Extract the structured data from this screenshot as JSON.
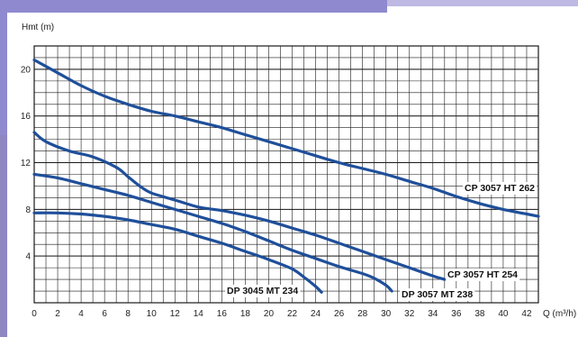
{
  "chart_data": {
    "type": "line",
    "ylabel": "Hmt (m)",
    "xlabel": "Q (m³/h)",
    "xlim": [
      0,
      43
    ],
    "ylim": [
      0,
      22
    ],
    "x_ticks": [
      0,
      2,
      4,
      6,
      8,
      10,
      12,
      14,
      16,
      18,
      20,
      22,
      24,
      26,
      28,
      30,
      32,
      34,
      36,
      38,
      40,
      42
    ],
    "y_ticks": [
      4,
      8,
      12,
      16,
      20
    ],
    "x_minor_step": 1,
    "y_minor_step": 1,
    "grid": true,
    "colors": {
      "series": "#1f4f9a",
      "grid": "#1a1a1a"
    },
    "series": [
      {
        "name": "CP 3057 HT 262",
        "points": [
          [
            0,
            20.8
          ],
          [
            2,
            19.7
          ],
          [
            4,
            18.6
          ],
          [
            6,
            17.7
          ],
          [
            8,
            17.0
          ],
          [
            10,
            16.4
          ],
          [
            12,
            16.0
          ],
          [
            14,
            15.5
          ],
          [
            16,
            15.0
          ],
          [
            18,
            14.4
          ],
          [
            20,
            13.8
          ],
          [
            22,
            13.2
          ],
          [
            24,
            12.6
          ],
          [
            26,
            12.0
          ],
          [
            28,
            11.5
          ],
          [
            30,
            11.0
          ],
          [
            32,
            10.4
          ],
          [
            34,
            9.8
          ],
          [
            36,
            9.1
          ],
          [
            38,
            8.5
          ],
          [
            40,
            8.0
          ],
          [
            42,
            7.6
          ],
          [
            43,
            7.4
          ]
        ]
      },
      {
        "name": "CP 3057 HT 254",
        "points": [
          [
            0,
            14.6
          ],
          [
            1,
            13.8
          ],
          [
            3,
            13.0
          ],
          [
            5,
            12.5
          ],
          [
            7,
            11.6
          ],
          [
            8,
            10.8
          ],
          [
            9,
            10.0
          ],
          [
            10,
            9.4
          ],
          [
            12,
            8.8
          ],
          [
            14,
            8.2
          ],
          [
            16,
            7.9
          ],
          [
            18,
            7.5
          ],
          [
            20,
            7.0
          ],
          [
            22,
            6.4
          ],
          [
            24,
            5.8
          ],
          [
            26,
            5.1
          ],
          [
            28,
            4.4
          ],
          [
            30,
            3.7
          ],
          [
            32,
            3.0
          ],
          [
            34,
            2.3
          ],
          [
            35,
            2.0
          ]
        ]
      },
      {
        "name": "DP 3057 MT 238",
        "points": [
          [
            0,
            11.0
          ],
          [
            2,
            10.7
          ],
          [
            4,
            10.2
          ],
          [
            6,
            9.7
          ],
          [
            8,
            9.2
          ],
          [
            10,
            8.6
          ],
          [
            12,
            8.0
          ],
          [
            14,
            7.4
          ],
          [
            16,
            6.8
          ],
          [
            18,
            6.1
          ],
          [
            20,
            5.3
          ],
          [
            22,
            4.5
          ],
          [
            24,
            3.8
          ],
          [
            26,
            3.1
          ],
          [
            28,
            2.5
          ],
          [
            29,
            2.1
          ],
          [
            30,
            1.5
          ],
          [
            30.5,
            1.0
          ]
        ]
      },
      {
        "name": "DP 3045 MT 234",
        "points": [
          [
            0,
            7.7
          ],
          [
            2,
            7.7
          ],
          [
            4,
            7.6
          ],
          [
            6,
            7.4
          ],
          [
            8,
            7.1
          ],
          [
            10,
            6.7
          ],
          [
            12,
            6.3
          ],
          [
            14,
            5.7
          ],
          [
            16,
            5.1
          ],
          [
            18,
            4.4
          ],
          [
            20,
            3.7
          ],
          [
            22,
            2.9
          ],
          [
            23,
            2.2
          ],
          [
            24,
            1.4
          ],
          [
            24.5,
            0.9
          ]
        ]
      }
    ],
    "labels": [
      {
        "series": "CP 3057 HT 262",
        "text": "CP 3057 HT 262"
      },
      {
        "series": "CP 3057 HT 254",
        "text": "CP 3057 HT 254"
      },
      {
        "series": "DP 3057 MT 238",
        "text": "DP 3057 MT 238"
      },
      {
        "series": "DP 3045 MT 234",
        "text": "DP 3045 MT 234"
      }
    ]
  }
}
